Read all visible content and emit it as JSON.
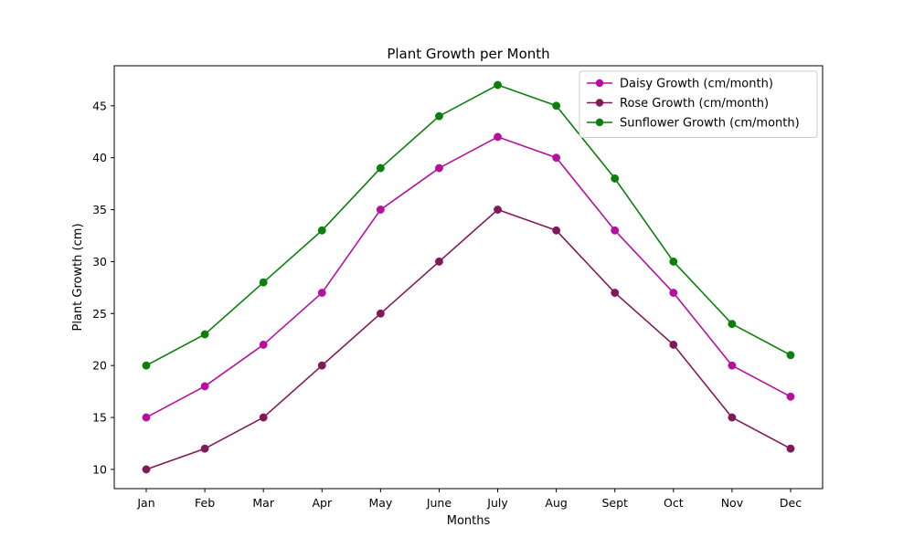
{
  "chart_data": {
    "type": "line",
    "title": "Plant Growth per Month",
    "xlabel": "Months",
    "ylabel": "Plant Growth (cm)",
    "categories": [
      "Jan",
      "Feb",
      "Mar",
      "Apr",
      "May",
      "June",
      "July",
      "Aug",
      "Sept",
      "Oct",
      "Nov",
      "Dec"
    ],
    "ylim": [
      8.15,
      48.85
    ],
    "yticks": [
      10,
      15,
      20,
      25,
      30,
      35,
      40,
      45
    ],
    "grid": false,
    "legend_position": "top-right",
    "series": [
      {
        "name": "Daisy Growth (cm/month)",
        "color": "#b5119e",
        "marker": "circle",
        "values": [
          15,
          18,
          22,
          27,
          35,
          39,
          42,
          40,
          33,
          27,
          20,
          17
        ]
      },
      {
        "name": "Rose Growth (cm/month)",
        "color": "#7f1a5a",
        "marker": "circle",
        "values": [
          10,
          12,
          15,
          20,
          25,
          30,
          35,
          33,
          27,
          22,
          15,
          12
        ]
      },
      {
        "name": "Sunflower Growth (cm/month)",
        "color": "#0a7f0a",
        "marker": "circle",
        "values": [
          20,
          23,
          28,
          33,
          39,
          44,
          47,
          45,
          38,
          30,
          24,
          21
        ]
      }
    ]
  }
}
